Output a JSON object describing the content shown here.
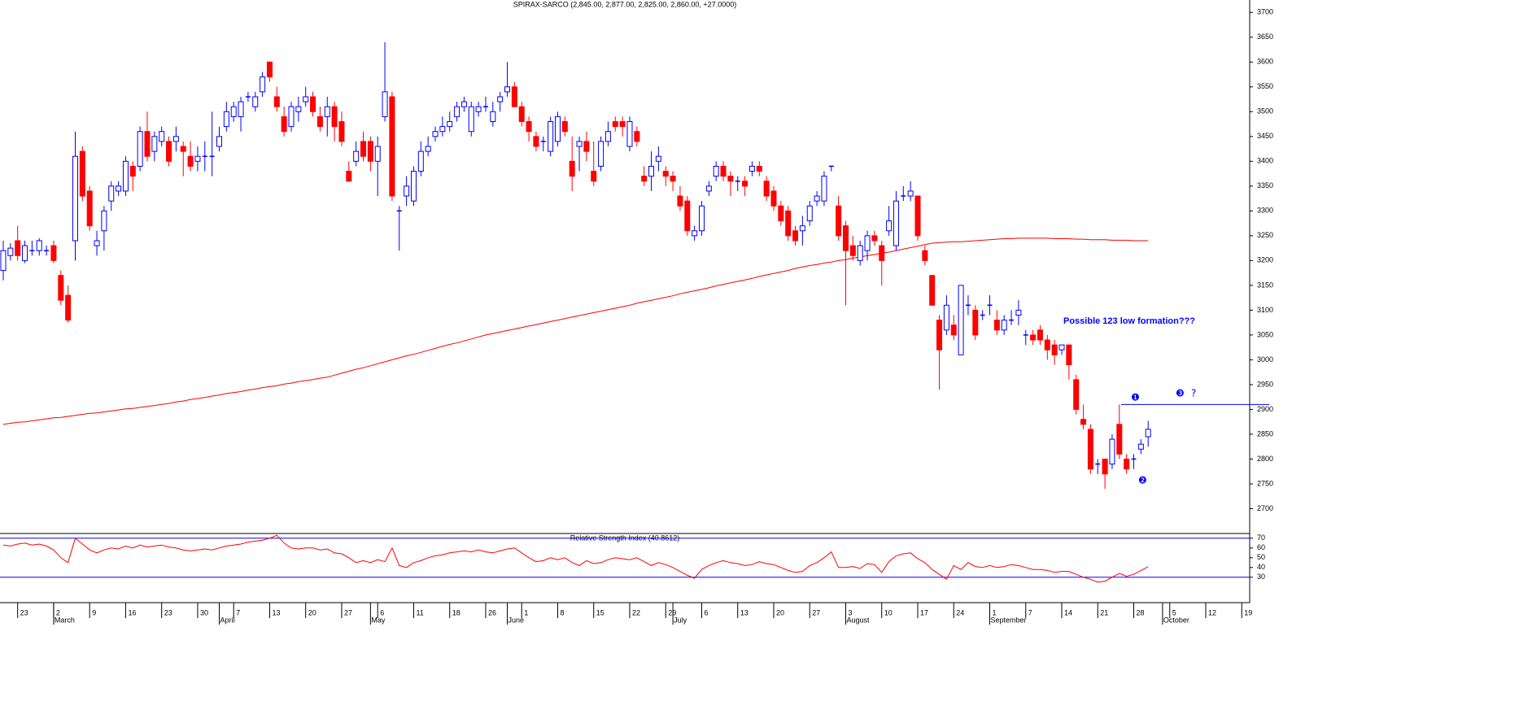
{
  "chart_data": {
    "type": "candlestick",
    "title": "SPIRAX-SARCO (2,845.00, 2,877.00, 2,825.00, 2,860.00, +27.0000)",
    "up_color": "#0000ff",
    "down_color": "#ff0000",
    "ma_color": "#ff0000",
    "xlim": [
      -0.45,
      173.1
    ],
    "ylim": [
      2650,
      3725
    ],
    "yticks": [
      2700,
      2750,
      2800,
      2850,
      2900,
      2950,
      3000,
      3050,
      3100,
      3150,
      3200,
      3250,
      3300,
      3350,
      3400,
      3450,
      3500,
      3550,
      3600,
      3650,
      3700
    ],
    "xticks": [
      {
        "value": 2,
        "label": "23"
      },
      {
        "value": 7,
        "label": "2"
      },
      {
        "value": 12,
        "label": "9"
      },
      {
        "value": 17,
        "label": "16"
      },
      {
        "value": 22,
        "label": "23"
      },
      {
        "value": 27,
        "label": "30"
      },
      {
        "value": 32,
        "label": "7"
      },
      {
        "value": 37,
        "label": "13"
      },
      {
        "value": 42,
        "label": "20"
      },
      {
        "value": 47,
        "label": "27"
      },
      {
        "value": 52,
        "label": "6"
      },
      {
        "value": 57,
        "label": "11"
      },
      {
        "value": 62,
        "label": "18"
      },
      {
        "value": 67,
        "label": "26"
      },
      {
        "value": 72,
        "label": "1"
      },
      {
        "value": 77,
        "label": "8"
      },
      {
        "value": 82,
        "label": "15"
      },
      {
        "value": 87,
        "label": "22"
      },
      {
        "value": 92,
        "label": "29"
      },
      {
        "value": 97,
        "label": "6"
      },
      {
        "value": 102,
        "label": "13"
      },
      {
        "value": 107,
        "label": "20"
      },
      {
        "value": 112,
        "label": "27"
      },
      {
        "value": 117,
        "label": "3"
      },
      {
        "value": 122,
        "label": "10"
      },
      {
        "value": 127,
        "label": "17"
      },
      {
        "value": 132,
        "label": "24"
      },
      {
        "value": 137,
        "label": "1"
      },
      {
        "value": 142,
        "label": "7"
      },
      {
        "value": 147,
        "label": "14"
      },
      {
        "value": 152,
        "label": "21"
      },
      {
        "value": 157,
        "label": "28"
      },
      {
        "value": 162,
        "label": "5"
      },
      {
        "value": 167,
        "label": "12"
      },
      {
        "value": 172,
        "label": "19"
      }
    ],
    "months": [
      {
        "value": 7,
        "label": "March"
      },
      {
        "value": 30,
        "label": "April"
      },
      {
        "value": 51,
        "label": "May"
      },
      {
        "value": 70,
        "label": "June"
      },
      {
        "value": 93,
        "label": "July"
      },
      {
        "value": 117,
        "label": "August"
      },
      {
        "value": 137,
        "label": "September"
      },
      {
        "value": 161,
        "label": "October"
      }
    ],
    "ohlc": [
      [
        3180,
        3240,
        3160,
        3220
      ],
      [
        3210,
        3235,
        3200,
        3225
      ],
      [
        3240,
        3270,
        3200,
        3210
      ],
      [
        3200,
        3240,
        3195,
        3230
      ],
      [
        3220,
        3240,
        3210,
        3220
      ],
      [
        3220,
        3245,
        3210,
        3240
      ],
      [
        3220,
        3230,
        3210,
        3220
      ],
      [
        3230,
        3240,
        3195,
        3200
      ],
      [
        3170,
        3180,
        3110,
        3120
      ],
      [
        3130,
        3150,
        3075,
        3080
      ],
      [
        3240,
        3460,
        3200,
        3410
      ],
      [
        3420,
        3430,
        3320,
        3330
      ],
      [
        3340,
        3350,
        3260,
        3270
      ],
      [
        3230,
        3260,
        3210,
        3240
      ],
      [
        3260,
        3310,
        3220,
        3300
      ],
      [
        3320,
        3360,
        3300,
        3350
      ],
      [
        3340,
        3360,
        3330,
        3350
      ],
      [
        3340,
        3410,
        3330,
        3400
      ],
      [
        3390,
        3400,
        3340,
        3370
      ],
      [
        3390,
        3470,
        3380,
        3460
      ],
      [
        3460,
        3500,
        3400,
        3410
      ],
      [
        3420,
        3460,
        3400,
        3450
      ],
      [
        3440,
        3470,
        3430,
        3460
      ],
      [
        3440,
        3450,
        3390,
        3400
      ],
      [
        3440,
        3470,
        3420,
        3450
      ],
      [
        3430,
        3440,
        3370,
        3420
      ],
      [
        3410,
        3440,
        3380,
        3390
      ],
      [
        3400,
        3430,
        3380,
        3410
      ],
      [
        3410,
        3440,
        3380,
        3410
      ],
      [
        3410,
        3500,
        3370,
        3410
      ],
      [
        3430,
        3470,
        3420,
        3450
      ],
      [
        3470,
        3520,
        3460,
        3500
      ],
      [
        3490,
        3520,
        3480,
        3510
      ],
      [
        3490,
        3530,
        3460,
        3520
      ],
      [
        3530,
        3540,
        3520,
        3530
      ],
      [
        3510,
        3540,
        3500,
        3530
      ],
      [
        3540,
        3580,
        3530,
        3570
      ],
      [
        3600,
        3600,
        3560,
        3570
      ],
      [
        3530,
        3550,
        3500,
        3510
      ],
      [
        3490,
        3510,
        3450,
        3460
      ],
      [
        3470,
        3520,
        3460,
        3510
      ],
      [
        3500,
        3530,
        3480,
        3510
      ],
      [
        3520,
        3550,
        3510,
        3530
      ],
      [
        3530,
        3540,
        3490,
        3500
      ],
      [
        3490,
        3510,
        3460,
        3470
      ],
      [
        3490,
        3530,
        3450,
        3510
      ],
      [
        3510,
        3520,
        3440,
        3470
      ],
      [
        3480,
        3500,
        3430,
        3440
      ],
      [
        3380,
        3400,
        3360,
        3360
      ],
      [
        3400,
        3440,
        3390,
        3420
      ],
      [
        3440,
        3460,
        3400,
        3410
      ],
      [
        3440,
        3450,
        3380,
        3400
      ],
      [
        3400,
        3450,
        3330,
        3430
      ],
      [
        3490,
        3640,
        3480,
        3540
      ],
      [
        3530,
        3540,
        3320,
        3330
      ],
      [
        3300,
        3310,
        3220,
        3300
      ],
      [
        3330,
        3370,
        3310,
        3350
      ],
      [
        3320,
        3390,
        3310,
        3380
      ],
      [
        3380,
        3440,
        3370,
        3420
      ],
      [
        3420,
        3450,
        3410,
        3430
      ],
      [
        3450,
        3470,
        3440,
        3460
      ],
      [
        3460,
        3490,
        3450,
        3470
      ],
      [
        3470,
        3500,
        3460,
        3480
      ],
      [
        3490,
        3520,
        3480,
        3510
      ],
      [
        3510,
        3530,
        3500,
        3520
      ],
      [
        3460,
        3520,
        3450,
        3510
      ],
      [
        3500,
        3520,
        3490,
        3510
      ],
      [
        3510,
        3530,
        3500,
        3510
      ],
      [
        3480,
        3520,
        3470,
        3500
      ],
      [
        3520,
        3540,
        3500,
        3530
      ],
      [
        3540,
        3600,
        3530,
        3550
      ],
      [
        3550,
        3560,
        3510,
        3510
      ],
      [
        3510,
        3520,
        3470,
        3480
      ],
      [
        3480,
        3490,
        3440,
        3460
      ],
      [
        3450,
        3460,
        3420,
        3430
      ],
      [
        3440,
        3450,
        3420,
        3440
      ],
      [
        3420,
        3490,
        3410,
        3480
      ],
      [
        3440,
        3500,
        3430,
        3490
      ],
      [
        3480,
        3490,
        3450,
        3460
      ],
      [
        3400,
        3450,
        3340,
        3370
      ],
      [
        3430,
        3450,
        3380,
        3440
      ],
      [
        3440,
        3460,
        3400,
        3420
      ],
      [
        3380,
        3440,
        3350,
        3360
      ],
      [
        3390,
        3450,
        3380,
        3440
      ],
      [
        3440,
        3480,
        3430,
        3460
      ],
      [
        3480,
        3490,
        3460,
        3470
      ],
      [
        3480,
        3490,
        3450,
        3470
      ],
      [
        3430,
        3490,
        3420,
        3480
      ],
      [
        3460,
        3470,
        3430,
        3440
      ],
      [
        3370,
        3390,
        3350,
        3360
      ],
      [
        3370,
        3420,
        3340,
        3390
      ],
      [
        3400,
        3430,
        3380,
        3410
      ],
      [
        3380,
        3390,
        3350,
        3370
      ],
      [
        3370,
        3380,
        3340,
        3360
      ],
      [
        3330,
        3350,
        3300,
        3310
      ],
      [
        3320,
        3330,
        3250,
        3260
      ],
      [
        3250,
        3270,
        3240,
        3260
      ],
      [
        3260,
        3320,
        3250,
        3310
      ],
      [
        3340,
        3360,
        3330,
        3350
      ],
      [
        3370,
        3400,
        3360,
        3390
      ],
      [
        3390,
        3400,
        3360,
        3370
      ],
      [
        3370,
        3380,
        3330,
        3360
      ],
      [
        3360,
        3370,
        3340,
        3360
      ],
      [
        3360,
        3370,
        3330,
        3350
      ],
      [
        3380,
        3400,
        3370,
        3390
      ],
      [
        3390,
        3400,
        3370,
        3380
      ],
      [
        3360,
        3370,
        3320,
        3330
      ],
      [
        3340,
        3350,
        3300,
        3310
      ],
      [
        3310,
        3320,
        3270,
        3280
      ],
      [
        3300,
        3310,
        3240,
        3250
      ],
      [
        3260,
        3270,
        3230,
        3240
      ],
      [
        3260,
        3290,
        3230,
        3270
      ],
      [
        3280,
        3320,
        3270,
        3310
      ],
      [
        3320,
        3340,
        3310,
        3330
      ],
      [
        3320,
        3380,
        3310,
        3370
      ],
      [
        3390,
        3390,
        3380,
        3390
      ],
      [
        3310,
        3330,
        3240,
        3250
      ],
      [
        3270,
        3280,
        3110,
        3220
      ],
      [
        3230,
        3250,
        3200,
        3210
      ],
      [
        3200,
        3240,
        3190,
        3230
      ],
      [
        3220,
        3260,
        3200,
        3250
      ],
      [
        3250,
        3260,
        3230,
        3240
      ],
      [
        3230,
        3240,
        3150,
        3200
      ],
      [
        3260,
        3310,
        3250,
        3280
      ],
      [
        3230,
        3340,
        3220,
        3320
      ],
      [
        3330,
        3350,
        3320,
        3330
      ],
      [
        3330,
        3360,
        3320,
        3340
      ],
      [
        3330,
        3330,
        3240,
        3250
      ],
      [
        3220,
        3230,
        3190,
        3200
      ],
      [
        3170,
        3170,
        3110,
        3110
      ],
      [
        3080,
        3090,
        2940,
        3020
      ],
      [
        3060,
        3130,
        3050,
        3110
      ],
      [
        3070,
        3090,
        3040,
        3050
      ],
      [
        3010,
        3150,
        3010,
        3150
      ],
      [
        3110,
        3130,
        3090,
        3110
      ],
      [
        3100,
        3110,
        3040,
        3050
      ],
      [
        3090,
        3100,
        3080,
        3090
      ],
      [
        3110,
        3130,
        3090,
        3110
      ],
      [
        3080,
        3100,
        3050,
        3060
      ],
      [
        3060,
        3090,
        3050,
        3080
      ],
      [
        3080,
        3100,
        3070,
        3080
      ],
      [
        3090,
        3120,
        3070,
        3100
      ],
      [
        3050,
        3060,
        3030,
        3050
      ],
      [
        3050,
        3060,
        3030,
        3040
      ],
      [
        3060,
        3070,
        3030,
        3040
      ],
      [
        3040,
        3050,
        3000,
        3020
      ],
      [
        3030,
        3040,
        2990,
        3010
      ],
      [
        3020,
        3030,
        3010,
        3030
      ],
      [
        3030,
        3030,
        2960,
        2990
      ],
      [
        2960,
        2970,
        2890,
        2900
      ],
      [
        2880,
        2910,
        2860,
        2870
      ],
      [
        2860,
        2870,
        2770,
        2780
      ],
      [
        2790,
        2800,
        2770,
        2790
      ],
      [
        2800,
        2800,
        2740,
        2770
      ],
      [
        2790,
        2850,
        2780,
        2840
      ],
      [
        2870,
        2910,
        2800,
        2810
      ],
      [
        2800,
        2810,
        2770,
        2780
      ],
      [
        2800,
        2810,
        2780,
        2800
      ],
      [
        2820,
        2840,
        2810,
        2830
      ],
      [
        2845,
        2877,
        2825,
        2860
      ]
    ],
    "moving_average": [
      2870,
      2872,
      2874,
      2875,
      2877,
      2879,
      2881,
      2883,
      2884,
      2886,
      2888,
      2890,
      2892,
      2893,
      2895,
      2897,
      2899,
      2901,
      2902,
      2904,
      2906,
      2908,
      2910,
      2912,
      2915,
      2917,
      2920,
      2922,
      2924,
      2927,
      2929,
      2932,
      2934,
      2936,
      2939,
      2941,
      2944,
      2946,
      2948,
      2951,
      2953,
      2956,
      2958,
      2960,
      2963,
      2965,
      2969,
      2973,
      2977,
      2981,
      2984,
      2988,
      2992,
      2996,
      3000,
      3004,
      3008,
      3011,
      3015,
      3019,
      3023,
      3027,
      3031,
      3034,
      3038,
      3042,
      3046,
      3050,
      3053,
      3056,
      3059,
      3062,
      3065,
      3068,
      3071,
      3074,
      3077,
      3080,
      3083,
      3086,
      3089,
      3092,
      3095,
      3098,
      3101,
      3104,
      3107,
      3110,
      3114,
      3117,
      3120,
      3123,
      3126,
      3129,
      3133,
      3136,
      3139,
      3142,
      3145,
      3149,
      3152,
      3155,
      3158,
      3161,
      3164,
      3168,
      3171,
      3174,
      3177,
      3180,
      3184,
      3187,
      3190,
      3192,
      3195,
      3197,
      3200,
      3202,
      3205,
      3207,
      3210,
      3212,
      3215,
      3217,
      3220,
      3223,
      3226,
      3229,
      3232,
      3235,
      3236,
      3237,
      3238,
      3238,
      3239,
      3240,
      3241,
      3242,
      3243,
      3244,
      3244,
      3245,
      3245,
      3245,
      3245,
      3245,
      3244,
      3244,
      3244,
      3243,
      3243,
      3242,
      3242,
      3242,
      3241,
      3241,
      3241,
      3240,
      3240,
      3240
    ],
    "resistance_level": 2910,
    "level_color": "#0000ff",
    "annotations": {
      "note": "Possible 123 low formation???",
      "points": [
        "❶",
        "❷",
        "❸"
      ],
      "query": "?"
    },
    "indicator": {
      "title": "Relative Strength Index (40.8612)",
      "color": "#ff0000",
      "ylim": [
        4,
        74
      ],
      "yticks": [
        30,
        40,
        50,
        60,
        70
      ],
      "levels": [
        70,
        30
      ],
      "values": [
        63,
        62,
        64,
        65,
        63,
        64,
        62,
        58,
        50,
        45,
        70,
        64,
        58,
        55,
        58,
        60,
        59,
        62,
        60,
        63,
        61,
        62,
        63,
        61,
        60,
        58,
        57,
        58,
        59,
        58,
        60,
        62,
        63,
        64,
        66,
        67,
        68,
        70,
        73,
        65,
        60,
        59,
        60,
        60,
        58,
        59,
        55,
        54,
        50,
        45,
        47,
        45,
        48,
        46,
        60,
        42,
        40,
        45,
        47,
        50,
        52,
        53,
        55,
        56,
        57,
        56,
        58,
        56,
        55,
        57,
        59,
        60,
        55,
        50,
        46,
        47,
        50,
        48,
        50,
        45,
        42,
        47,
        44,
        45,
        48,
        50,
        49,
        48,
        50,
        46,
        42,
        45,
        43,
        40,
        36,
        32,
        29,
        38,
        42,
        45,
        47,
        45,
        44,
        42,
        43,
        46,
        44,
        43,
        40,
        37,
        35,
        36,
        42,
        45,
        50,
        56,
        40,
        40,
        41,
        39,
        44,
        43,
        35,
        46,
        52,
        54,
        55,
        49,
        45,
        38,
        33,
        28,
        42,
        38,
        45,
        41,
        40,
        42,
        40,
        41,
        43,
        42,
        40,
        38,
        38,
        37,
        35,
        36,
        36,
        33,
        30,
        28,
        25,
        26,
        30,
        34,
        31,
        33,
        37,
        40.8612
      ]
    }
  }
}
